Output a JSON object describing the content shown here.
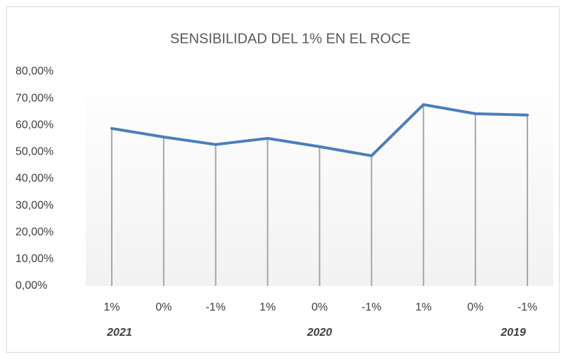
{
  "chart_data": {
    "type": "line",
    "title": "SENSIBILIDAD DEL 1% EN EL ROCE",
    "categories": [
      "1%",
      "0%",
      "-1%",
      "1%",
      "0%",
      "-1%",
      "1%",
      "0%",
      "-1%"
    ],
    "groups": [
      "2021",
      "2020",
      "2019"
    ],
    "series": [
      {
        "color": "#4a7ebb",
        "values": [
          58.8,
          55.6,
          52.8,
          55.1,
          52.0,
          48.6,
          67.7,
          64.3,
          63.8
        ]
      }
    ],
    "ylim": [
      0,
      80
    ],
    "yticks": [
      {
        "value": 0,
        "label": "0,00%"
      },
      {
        "value": 10,
        "label": "10,00%"
      },
      {
        "value": 20,
        "label": "20,00%"
      },
      {
        "value": 30,
        "label": "30,00%"
      },
      {
        "value": 40,
        "label": "40,00%"
      },
      {
        "value": 50,
        "label": "50,00%"
      },
      {
        "value": 60,
        "label": "60,00%"
      },
      {
        "value": 70,
        "label": "70,00%"
      },
      {
        "value": 80,
        "label": "80,00%"
      }
    ],
    "drop_lines": true
  }
}
